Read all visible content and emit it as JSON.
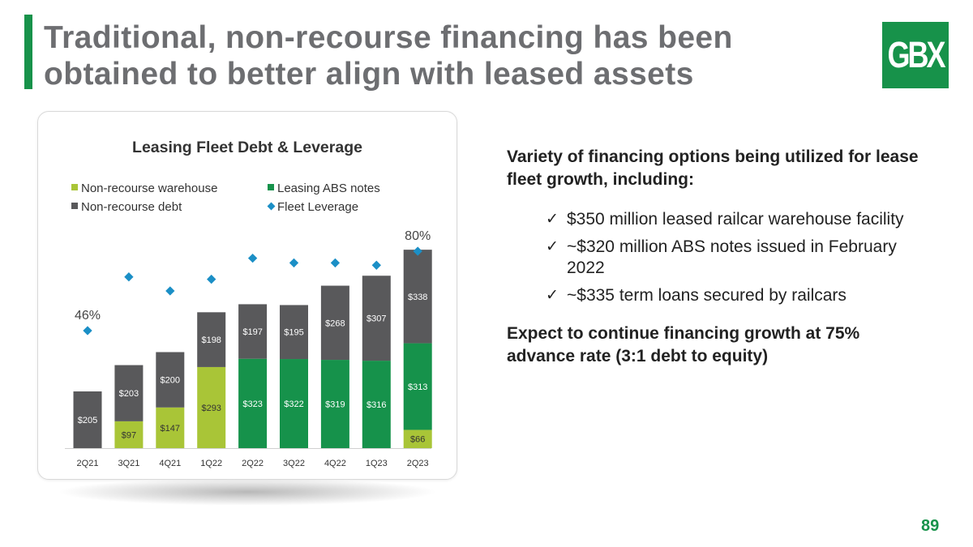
{
  "slide": {
    "title": "Traditional, non-recourse financing has been obtained to better align with leased assets",
    "logo_text": "GBX",
    "page_number": "89"
  },
  "colors": {
    "accent": "#17924a",
    "warehouse": "#a9c537",
    "abs": "#16924b",
    "debt": "#59595b",
    "leverage": "#1b8fc6"
  },
  "chart_data": {
    "type": "bar",
    "title": "Leasing Fleet Debt & Leverage",
    "categories": [
      "2Q21",
      "3Q21",
      "4Q21",
      "1Q22",
      "2Q22",
      "3Q22",
      "4Q22",
      "1Q23",
      "2Q23"
    ],
    "series": [
      {
        "name": "Non-recourse warehouse",
        "kind": "stacked-bar",
        "values": [
          0,
          97,
          147,
          293,
          0,
          0,
          0,
          0,
          66
        ],
        "labels": [
          "",
          "$97",
          "$147",
          "$293",
          "",
          "",
          "",
          "",
          "$66"
        ]
      },
      {
        "name": "Leasing ABS notes",
        "kind": "stacked-bar",
        "values": [
          0,
          0,
          0,
          0,
          323,
          322,
          319,
          316,
          313
        ],
        "labels": [
          "",
          "",
          "",
          "",
          "$323",
          "$322",
          "$319",
          "$316",
          "$313"
        ]
      },
      {
        "name": "Non-recourse debt",
        "kind": "stacked-bar",
        "values": [
          205,
          203,
          200,
          198,
          197,
          195,
          268,
          307,
          338
        ],
        "labels": [
          "$205",
          "$203",
          "$200",
          "$198",
          "$197",
          "$195",
          "$268",
          "$307",
          "$338"
        ]
      },
      {
        "name": "Fleet Leverage",
        "kind": "marker",
        "values": [
          46,
          69,
          63,
          68,
          77,
          75,
          75,
          74,
          80
        ],
        "unit": "%"
      }
    ],
    "point_labels": [
      {
        "index": 0,
        "text": "46%"
      },
      {
        "index": 8,
        "text": "80%"
      }
    ],
    "legend": [
      "Non-recourse warehouse",
      "Leasing ABS notes",
      "Non-recourse debt",
      "Fleet Leverage"
    ],
    "legend_position": "top",
    "ylim": [
      0,
      750
    ]
  },
  "panel": {
    "intro": "Variety of financing options being utilized for lease fleet growth, including:",
    "bullets": [
      "$350 million leased railcar warehouse facility",
      "~$320 million ABS notes issued in February 2022",
      "~$335 term loans secured by railcars"
    ],
    "check_glyph": "✓",
    "outro": "Expect to continue financing growth at 75% advance rate (3:1 debt to equity)"
  }
}
